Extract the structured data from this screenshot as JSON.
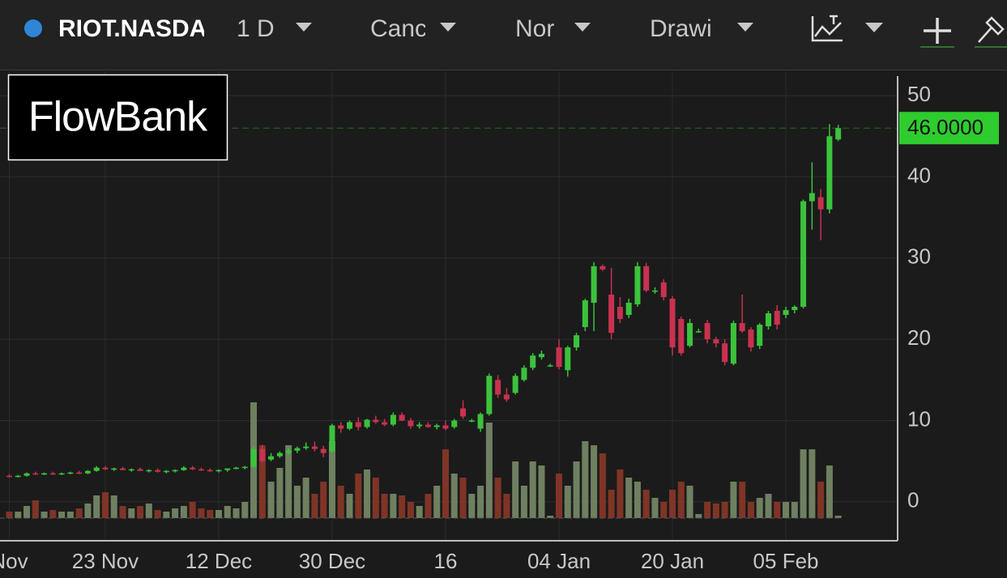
{
  "toolbar": {
    "symbol": "RIOT.NASDA",
    "interval": "1 D",
    "chart_type": "Canc",
    "scale": "Nor",
    "drawing": "Drawi"
  },
  "logo": "FlowBank",
  "chart_data": {
    "type": "candlestick",
    "categories": [
      "Nov",
      null,
      null,
      null,
      null,
      null,
      null,
      null,
      null,
      null,
      null,
      "23 Nov",
      null,
      null,
      null,
      null,
      null,
      null,
      null,
      null,
      null,
      null,
      null,
      null,
      "12 Dec",
      null,
      null,
      null,
      null,
      null,
      null,
      null,
      null,
      null,
      null,
      null,
      null,
      "30 Dec",
      null,
      null,
      null,
      null,
      null,
      null,
      null,
      null,
      null,
      null,
      null,
      null,
      "16",
      null,
      null,
      null,
      null,
      null,
      null,
      null,
      null,
      null,
      null,
      null,
      null,
      "04 Jan",
      null,
      null,
      null,
      null,
      null,
      null,
      null,
      null,
      null,
      null,
      null,
      null,
      "20 Jan",
      null,
      null,
      null,
      null,
      null,
      null,
      null,
      null,
      null,
      null,
      null,
      null,
      "05 Feb",
      null,
      null,
      null,
      null,
      null,
      null
    ],
    "open": [
      3.2,
      3.1,
      3.2,
      3.5,
      3.4,
      3.5,
      3.4,
      3.5,
      3.6,
      3.5,
      3.8,
      4.2,
      4.0,
      4.1,
      3.9,
      4.0,
      3.8,
      3.9,
      3.7,
      3.8,
      3.9,
      4.2,
      4.0,
      3.9,
      3.8,
      3.9,
      4.1,
      4.2,
      4.3,
      6.5,
      5.2,
      5.6,
      6.0,
      6.3,
      6.6,
      6.8,
      6.5,
      6.2,
      9.4,
      9.0,
      9.8,
      9.2,
      10.1,
      9.8,
      9.5,
      10.7,
      10.0,
      9.3,
      9.5,
      9.2,
      9.4,
      9.2,
      11.5,
      10.0,
      9.0,
      10.8,
      15.0,
      13.2,
      13.4,
      15.0,
      16.5,
      17.8,
      16.8,
      19.0,
      16.2,
      19.0,
      21.5,
      24.5,
      29.0,
      25.5,
      24.0,
      23.0,
      24.3,
      29.0,
      26.0,
      27.0,
      25.0,
      22.5,
      19.2,
      21.0,
      22.0,
      20.0,
      19.5,
      17.0,
      22.0,
      21.2,
      19.2,
      21.6,
      23.5,
      23.0,
      23.6,
      24.0,
      37.0,
      37.5,
      36.0,
      44.6
    ],
    "high": [
      3.4,
      3.3,
      3.6,
      3.7,
      3.6,
      3.7,
      3.6,
      3.7,
      3.8,
      3.9,
      4.4,
      4.4,
      4.2,
      4.3,
      4.1,
      4.2,
      4.0,
      4.1,
      3.9,
      4.0,
      4.4,
      4.4,
      4.2,
      4.1,
      4.0,
      4.1,
      4.3,
      4.4,
      6.8,
      7.0,
      6.0,
      6.2,
      6.6,
      6.8,
      7.3,
      7.4,
      6.9,
      9.6,
      9.8,
      10.0,
      10.4,
      10.2,
      10.6,
      10.2,
      11.0,
      11.0,
      10.3,
      9.8,
      9.8,
      9.6,
      10.0,
      10.2,
      12.5,
      10.2,
      11.0,
      15.8,
      15.6,
      14.0,
      15.8,
      16.8,
      18.3,
      18.6,
      17.0,
      20.0,
      19.2,
      20.8,
      25.0,
      29.5,
      29.2,
      28.8,
      25.2,
      25.0,
      29.5,
      29.4,
      26.4,
      27.4,
      25.3,
      22.8,
      22.5,
      21.3,
      22.4,
      20.3,
      20.0,
      22.3,
      25.5,
      21.5,
      22.0,
      23.5,
      24.2,
      24.0,
      24.2,
      37.2,
      41.8,
      38.5,
      46.5,
      46.4
    ],
    "low": [
      3.0,
      3.0,
      3.1,
      3.3,
      3.3,
      3.3,
      3.3,
      3.4,
      3.4,
      3.4,
      3.7,
      3.9,
      3.8,
      3.9,
      3.7,
      3.8,
      3.6,
      3.6,
      3.5,
      3.6,
      3.8,
      3.9,
      3.8,
      3.7,
      3.6,
      3.7,
      4.0,
      4.0,
      4.1,
      4.8,
      5.0,
      5.4,
      5.8,
      6.0,
      6.4,
      6.2,
      5.5,
      6.0,
      8.5,
      8.8,
      8.8,
      9.0,
      9.6,
      9.3,
      9.3,
      9.9,
      9.0,
      9.0,
      9.1,
      8.9,
      8.8,
      9.0,
      10.2,
      9.8,
      8.6,
      10.6,
      12.8,
      12.3,
      13.2,
      14.8,
      16.2,
      17.5,
      16.6,
      16.3,
      15.4,
      18.6,
      21.0,
      21.0,
      28.4,
      20.0,
      22.0,
      22.6,
      24.0,
      25.8,
      25.6,
      24.8,
      18.0,
      18.0,
      19.0,
      20.8,
      19.5,
      19.0,
      16.8,
      16.8,
      20.8,
      18.5,
      18.8,
      21.2,
      21.2,
      22.6,
      23.2,
      23.8,
      33.5,
      32.2,
      35.5,
      44.4
    ],
    "close": [
      3.1,
      3.2,
      3.5,
      3.4,
      3.5,
      3.4,
      3.5,
      3.6,
      3.5,
      3.8,
      4.2,
      4.0,
      4.1,
      3.9,
      4.0,
      3.8,
      3.9,
      3.7,
      3.8,
      3.9,
      4.2,
      4.0,
      3.9,
      3.8,
      3.9,
      4.1,
      4.2,
      4.3,
      6.5,
      5.0,
      5.6,
      6.0,
      6.3,
      6.6,
      6.8,
      6.5,
      6.0,
      9.4,
      9.0,
      9.8,
      9.2,
      10.1,
      9.8,
      9.5,
      10.7,
      10.0,
      9.3,
      9.5,
      9.2,
      9.4,
      9.0,
      10.0,
      10.5,
      10.0,
      10.8,
      15.5,
      13.2,
      12.6,
      15.5,
      16.5,
      18.0,
      18.2,
      16.8,
      16.6,
      19.0,
      20.5,
      24.8,
      29.0,
      28.6,
      20.8,
      22.5,
      24.5,
      29.0,
      26.0,
      26.0,
      25.2,
      19.0,
      18.3,
      22.0,
      21.0,
      20.0,
      19.5,
      17.2,
      22.0,
      21.0,
      19.0,
      21.8,
      23.2,
      21.8,
      23.6,
      24.0,
      37.0,
      38.0,
      36.0,
      45.0,
      46.0
    ],
    "volume": [
      8,
      8,
      15,
      22,
      8,
      10,
      8,
      8,
      12,
      18,
      28,
      32,
      28,
      15,
      12,
      15,
      18,
      10,
      8,
      12,
      15,
      20,
      12,
      10,
      10,
      15,
      12,
      20,
      143,
      90,
      45,
      62,
      90,
      40,
      50,
      30,
      45,
      95,
      40,
      30,
      55,
      60,
      50,
      30,
      30,
      28,
      20,
      15,
      30,
      40,
      85,
      55,
      50,
      30,
      40,
      118,
      50,
      30,
      70,
      40,
      70,
      65,
      3,
      55,
      40,
      70,
      95,
      90,
      80,
      35,
      60,
      50,
      45,
      35,
      25,
      20,
      35,
      45,
      40,
      5,
      20,
      18,
      20,
      45,
      45,
      20,
      25,
      30,
      20,
      20,
      20,
      85,
      85,
      45,
      65,
      3
    ],
    "ylim": [
      -4.8,
      53
    ],
    "yticks": [
      0,
      10,
      20,
      30,
      40,
      50
    ],
    "last_price": {
      "value": 46,
      "label": "46.0000"
    },
    "up_color": "#3cc23c",
    "down_color": "#c8324f",
    "up_volume_color": "#6e8060",
    "down_volume_color": "#7f3426",
    "price_line_color": "#2ecc2e",
    "grid": true
  }
}
